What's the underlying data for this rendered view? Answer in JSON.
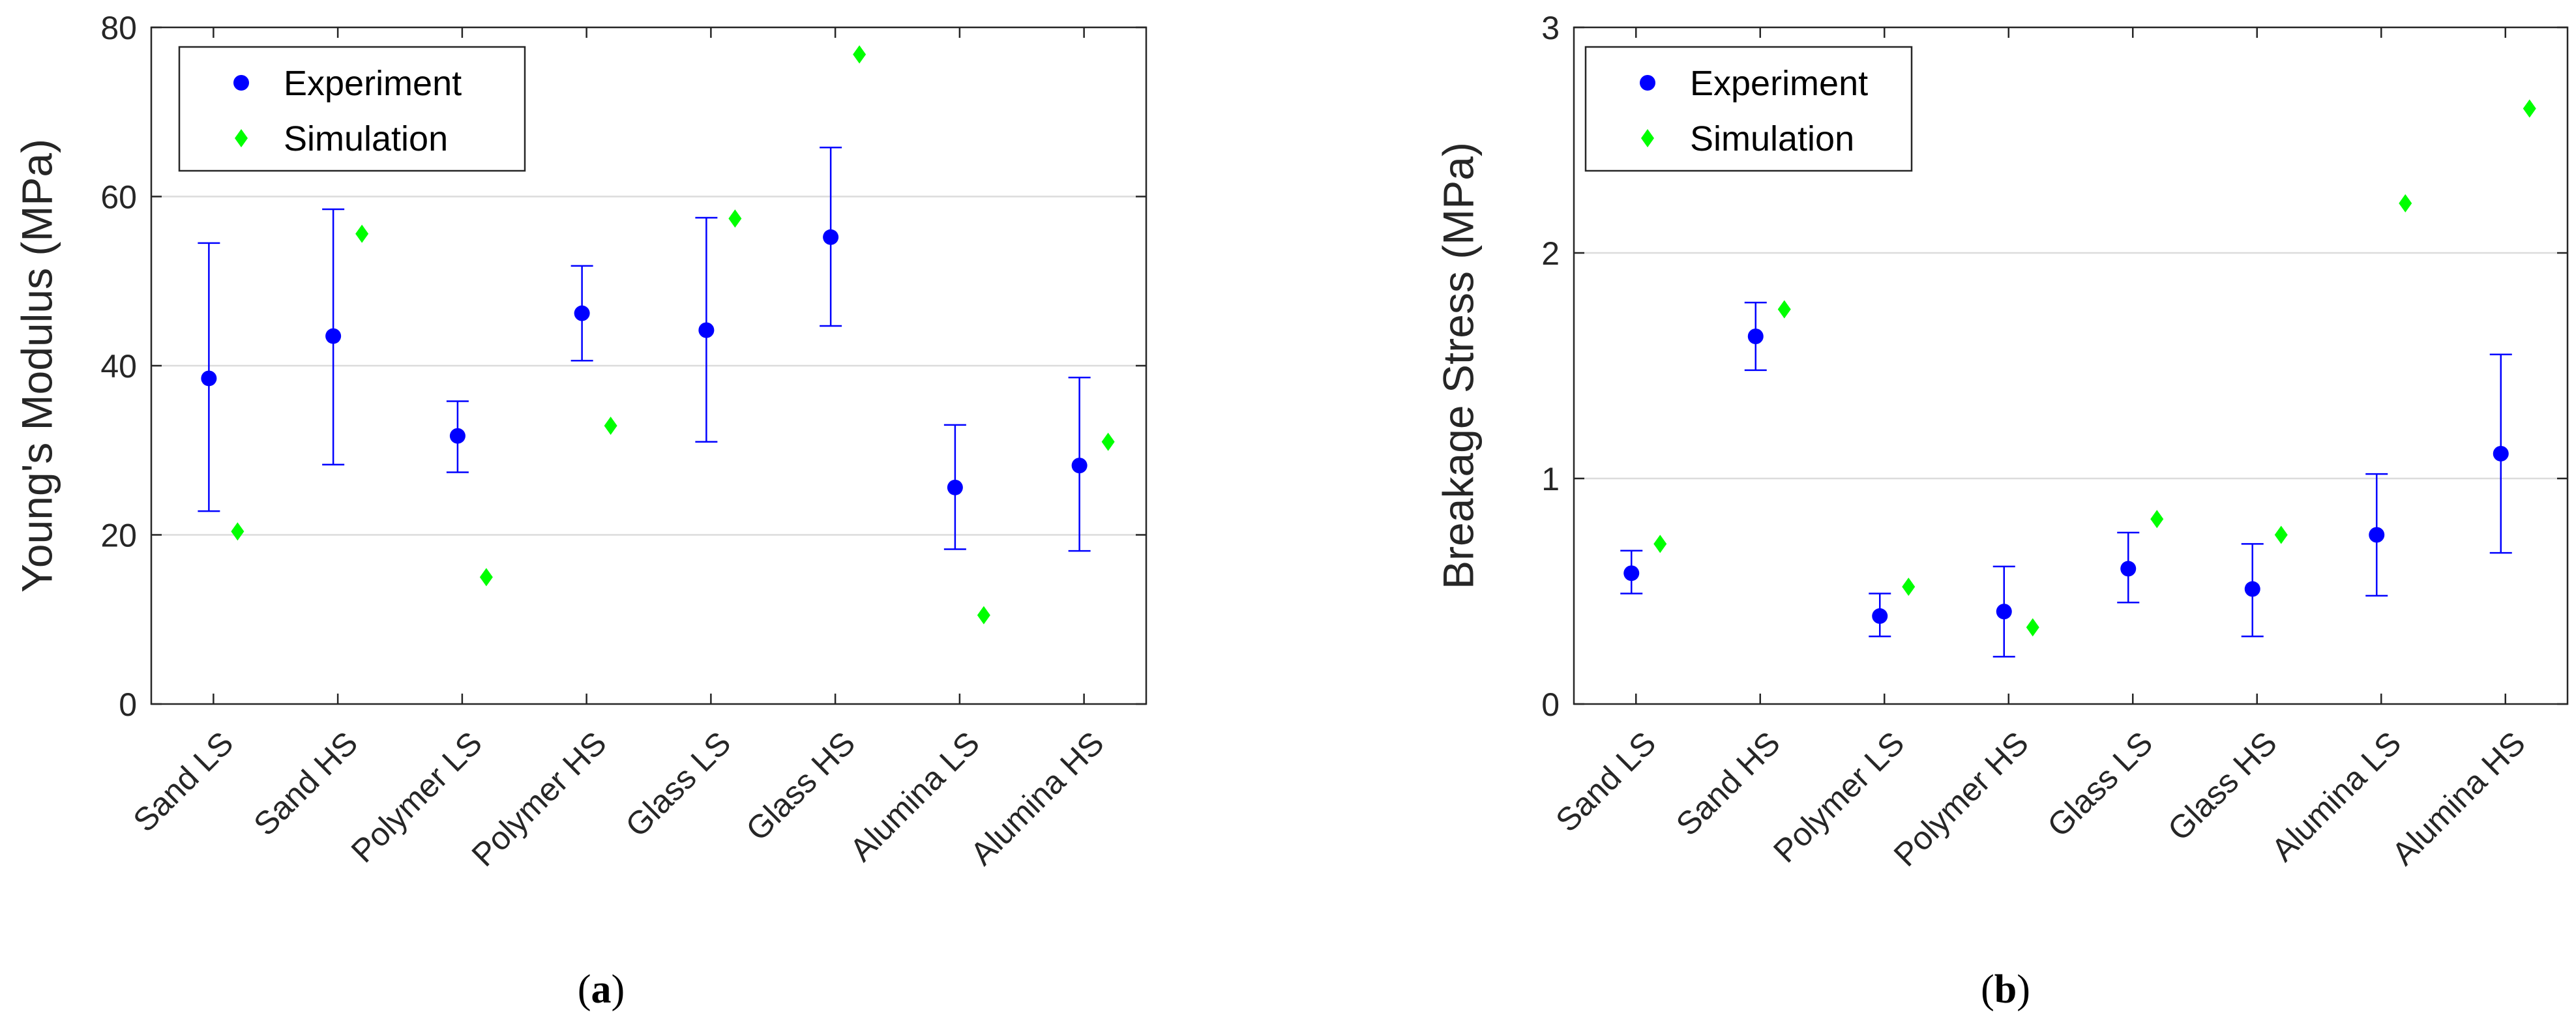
{
  "chart_data": [
    {
      "panel": "a",
      "type": "scatter",
      "categories": [
        "Sand LS",
        "Sand HS",
        "Polymer LS",
        "Polymer HS",
        "Glass LS",
        "Glass HS",
        "Alumina LS",
        "Alumina HS"
      ],
      "ylabel": "Young's Modulus (MPa)",
      "xlabel": "",
      "ylim": [
        0,
        80
      ],
      "yticks": [
        "0",
        "20",
        "40",
        "60",
        "80"
      ],
      "grid": "horizontal",
      "legend_position": "top-left",
      "series": [
        {
          "name": "Experiment",
          "marker": "circle",
          "color": "#0000ff",
          "values": [
            38.5,
            43.5,
            31.7,
            46.2,
            44.2,
            55.2,
            25.6,
            28.2
          ],
          "error_low": [
            22.8,
            28.3,
            27.4,
            40.6,
            31.0,
            44.7,
            18.3,
            18.1
          ],
          "error_high": [
            54.5,
            58.5,
            35.8,
            51.8,
            57.5,
            65.8,
            33.0,
            38.6
          ]
        },
        {
          "name": "Simulation",
          "marker": "diamond",
          "color": "#00ff00",
          "values": [
            20.4,
            55.6,
            15.0,
            32.9,
            57.4,
            76.8,
            10.5,
            31.0
          ]
        }
      ],
      "caption_letter": "a",
      "caption_open": "(",
      "caption_close": ")"
    },
    {
      "panel": "b",
      "type": "scatter",
      "categories": [
        "Sand LS",
        "Sand HS",
        "Polymer LS",
        "Polymer HS",
        "Glass LS",
        "Glass HS",
        "Alumina LS",
        "Alumina HS"
      ],
      "ylabel": "Breakage Stress (MPa)",
      "xlabel": "",
      "ylim": [
        0,
        3
      ],
      "yticks": [
        "0",
        "1",
        "2",
        "3"
      ],
      "grid": "horizontal",
      "legend_position": "top-left",
      "series": [
        {
          "name": "Experiment",
          "marker": "circle",
          "color": "#0000ff",
          "values": [
            0.58,
            1.63,
            0.39,
            0.41,
            0.6,
            0.51,
            0.75,
            1.11
          ],
          "error_low": [
            0.49,
            1.48,
            0.3,
            0.21,
            0.45,
            0.3,
            0.48,
            0.67
          ],
          "error_high": [
            0.68,
            1.78,
            0.49,
            0.61,
            0.76,
            0.71,
            1.02,
            1.55
          ]
        },
        {
          "name": "Simulation",
          "marker": "diamond",
          "color": "#00ff00",
          "values": [
            0.71,
            1.75,
            0.52,
            0.34,
            0.82,
            0.75,
            2.22,
            2.64
          ]
        }
      ],
      "caption_letter": "b",
      "caption_open": "(",
      "caption_close": ")"
    }
  ]
}
